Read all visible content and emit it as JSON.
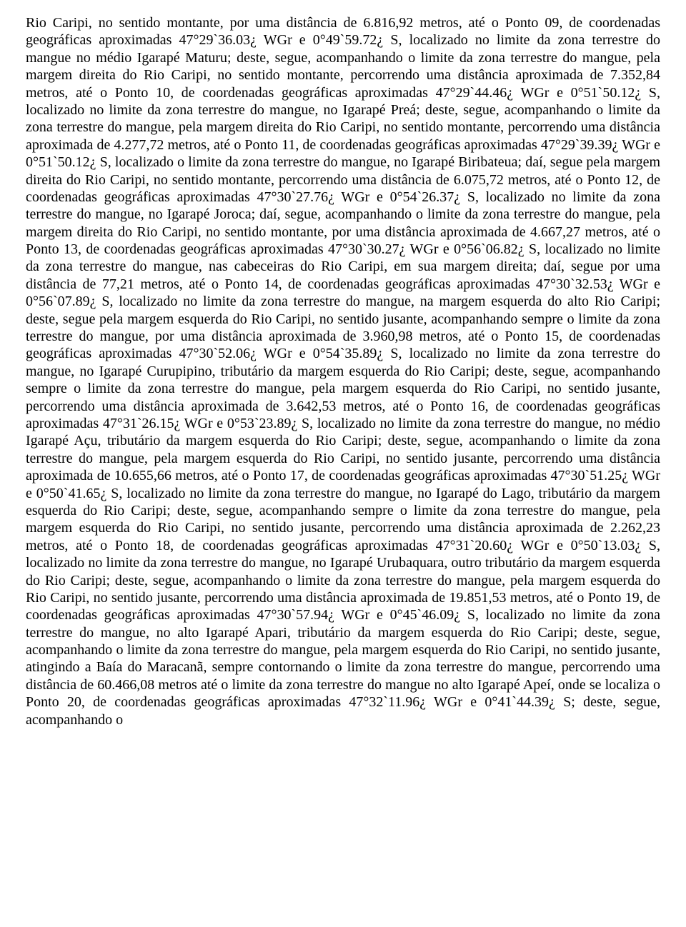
{
  "document": {
    "font_family": "Times New Roman",
    "font_size_pt": 15,
    "line_height": 1.22,
    "text_color": "#000000",
    "background_color": "#ffffff",
    "alignment": "justify",
    "body_text": "Rio Caripi, no sentido montante, por uma distância de 6.816,92 metros, até o Ponto 09, de coordenadas geográficas aproximadas 47°29`36.03¿ WGr e 0°49`59.72¿ S, localizado no limite da zona terrestre do mangue no médio Igarapé Maturu; deste, segue, acompanhando o limite da zona terrestre do mangue, pela margem direita do Rio Caripi, no sentido montante, percorrendo uma distância aproximada de 7.352,84 metros, até o Ponto 10, de coordenadas geográficas aproximadas 47°29`44.46¿ WGr e 0°51`50.12¿ S, localizado no limite da zona terrestre do mangue, no Igarapé Preá; deste, segue, acompanhando o limite da zona terrestre do mangue, pela margem direita do Rio Caripi, no sentido montante, percorrendo uma distância aproximada de 4.277,72 metros, até o Ponto 11, de coordenadas geográficas aproximadas 47°29`39.39¿ WGr e 0°51`50.12¿ S, localizado o limite da zona terrestre do mangue, no Igarapé Biribateua; daí, segue pela margem direita do Rio Caripi, no sentido montante, percorrendo uma distância de 6.075,72 metros, até o Ponto 12, de coordenadas geográficas aproximadas 47°30`27.76¿ WGr e 0°54`26.37¿ S, localizado no limite da zona terrestre do mangue, no Igarapé Joroca; daí, segue, acompanhando o limite da zona terrestre do mangue, pela margem direita do Rio Caripi, no sentido montante, por uma distância aproximada de 4.667,27 metros, até o Ponto 13, de coordenadas geográficas aproximadas 47°30`30.27¿ WGr e 0°56`06.82¿ S, localizado no limite da zona terrestre do mangue, nas cabeceiras do Rio Caripi, em sua margem direita; daí, segue por uma distância de 77,21 metros, até o Ponto 14, de coordenadas geográficas aproximadas 47°30`32.53¿ WGr e 0°56`07.89¿ S, localizado no limite da zona terrestre do mangue, na margem esquerda do alto Rio Caripi; deste, segue pela margem esquerda do Rio Caripi, no sentido jusante, acompanhando sempre o limite da zona terrestre do mangue, por uma distância aproximada de 3.960,98 metros, até o Ponto 15, de coordenadas geográficas aproximadas 47°30`52.06¿ WGr e 0°54`35.89¿ S, localizado no limite da zona terrestre do mangue, no Igarapé Curupipino, tributário da margem esquerda do Rio Caripi; deste, segue, acompanhando sempre o limite da zona terrestre do mangue, pela margem esquerda do Rio Caripi, no sentido jusante, percorrendo uma distância aproximada de 3.642,53 metros, até o Ponto 16, de coordenadas geográficas aproximadas 47°31`26.15¿ WGr e 0°53`23.89¿ S, localizado no limite da zona terrestre do mangue, no médio Igarapé Açu, tributário da margem esquerda do Rio Caripi; deste, segue, acompanhando o limite da zona terrestre do mangue, pela margem esquerda do Rio Caripi, no sentido jusante, percorrendo uma distância aproximada de 10.655,66 metros, até o Ponto 17, de coordenadas geográficas aproximadas 47°30`51.25¿ WGr e 0°50`41.65¿ S, localizado no limite da zona terrestre do mangue, no Igarapé do Lago, tributário da margem esquerda do Rio Caripi; deste, segue, acompanhando sempre o limite da zona terrestre do mangue, pela margem esquerda do Rio Caripi, no sentido jusante, percorrendo uma distância aproximada de 2.262,23 metros, até o Ponto 18, de coordenadas geográficas aproximadas 47°31`20.60¿ WGr e 0°50`13.03¿ S, localizado no limite da zona terrestre do mangue, no Igarapé Urubaquara, outro tributário da margem esquerda do Rio Caripi; deste, segue, acompanhando o limite da zona terrestre do mangue, pela margem esquerda do Rio Caripi, no sentido jusante, percorrendo uma distância aproximada de 19.851,53 metros, até o Ponto 19, de coordenadas geográficas aproximadas 47°30`57.94¿ WGr e 0°45`46.09¿ S, localizado no limite da zona terrestre do mangue, no alto Igarapé Apari, tributário da margem esquerda do Rio Caripi; deste, segue, acompanhando o limite da zona terrestre do mangue, pela margem esquerda do Rio Caripi, no sentido jusante, atingindo a Baía do Maracanã, sempre contornando o limite da zona terrestre do mangue, percorrendo uma distância de 60.466,08 metros até o limite da zona terrestre do mangue no alto Igarapé Apeí, onde se localiza o Ponto 20, de coordenadas geográficas aproximadas 47°32`11.96¿ WGr e 0°41`44.39¿ S; deste, segue, acompanhando o"
  }
}
